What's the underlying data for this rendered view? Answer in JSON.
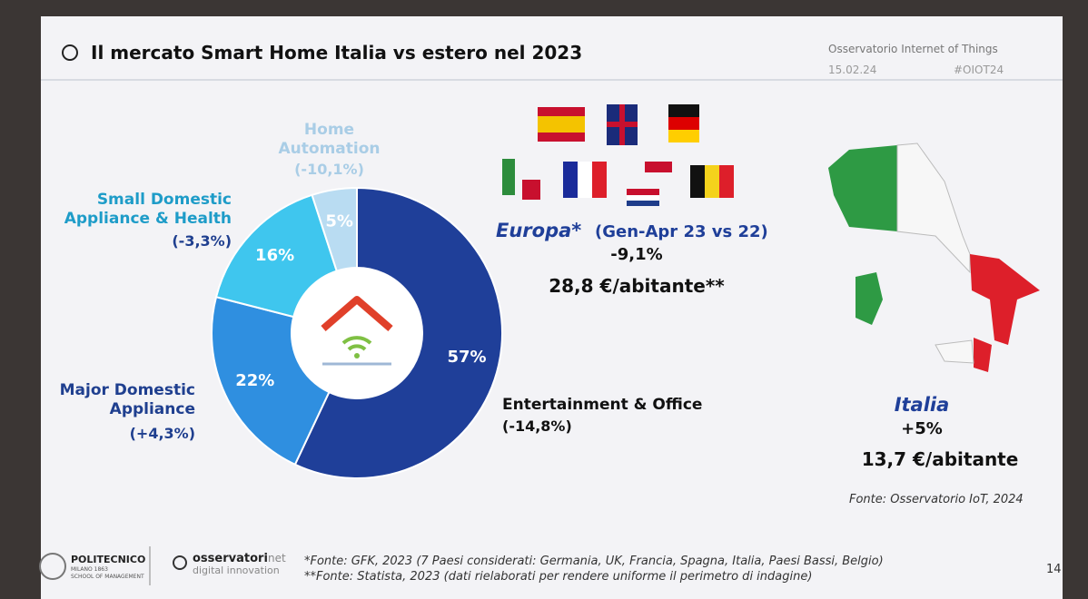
{
  "header": {
    "title": "Il mercato Smart Home Italia vs estero nel 2023",
    "source": "Osservatorio Internet of Things",
    "date": "15.02.24",
    "hashtag": "#OIOT24"
  },
  "chart_data": {
    "type": "pie",
    "donut": true,
    "categories": [
      "Entertainment & Office",
      "Major Domestic Appliance",
      "Small Domestic Appliance & Health",
      "Home Automation"
    ],
    "changes": [
      "(-14,8%)",
      "(+4,3%)",
      "(-3,3%)",
      "(-10,1%)"
    ],
    "values": [
      57,
      22,
      16,
      5
    ],
    "value_labels": [
      "57%",
      "22%",
      "16%",
      "5%"
    ],
    "colors": [
      "#1f3f99",
      "#2f8fe0",
      "#3fc6ee",
      "#b9dcf2"
    ]
  },
  "europe": {
    "label": "Europa*",
    "period": "(Gen-Apr 23 vs 22)",
    "change": "-9,1%",
    "per_capita": "28,8 €/abitante**"
  },
  "italy": {
    "label": "Italia",
    "change": "+5%",
    "per_capita": "13,7 €/abitante"
  },
  "source": "Fonte: Osservatorio IoT, 2024",
  "footer": {
    "logo1": {
      "name": "POLITECNICO",
      "city": "MILANO 1863",
      "school": "SCHOOL OF MANAGEMENT"
    },
    "logo2": {
      "name": "osservatori",
      "suffix": "net",
      "tagline": "digital innovation"
    },
    "notes": [
      "*Fonte: GFK, 2023 (7 Paesi considerati: Germania, UK, Francia, Spagna, Italia, Paesi Bassi, Belgio)",
      "**Fonte: Statista, 2023 (dati rielaborati per rendere uniforme il perimetro di indagine)"
    ],
    "page": "14"
  }
}
